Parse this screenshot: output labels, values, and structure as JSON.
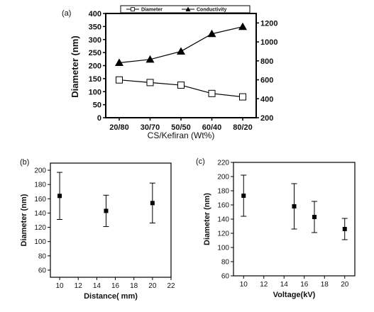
{
  "chart_data": [
    {
      "panel_label": "(a)",
      "type": "line",
      "categories": [
        "20/80",
        "30/70",
        "50/50",
        "60/40",
        "80/20"
      ],
      "xlabel": "CS/Kefiran (Wt%)",
      "ylabel": "Diameter (nm)",
      "ylabel_right": "",
      "ylim": [
        0,
        400
      ],
      "yticks": [
        "0",
        "50",
        "100",
        "150",
        "200",
        "250",
        "300",
        "350",
        "400"
      ],
      "ylim_right": [
        200,
        1300
      ],
      "yticks_right": [
        "200",
        "400",
        "600",
        "800",
        "1000",
        "1200"
      ],
      "legend_position": "top",
      "series": [
        {
          "name": "Diameter",
          "axis": "left",
          "marker": "open-square",
          "values": [
            145,
            135,
            125,
            93,
            80
          ]
        },
        {
          "name": "Conductivity",
          "axis": "right",
          "marker": "filled-triangle",
          "values": [
            780,
            815,
            900,
            1085,
            1160
          ]
        }
      ]
    },
    {
      "panel_label": "(b)",
      "type": "scatter",
      "xlabel": "Distance( mm)",
      "ylabel": "Diameter (nm)",
      "xlim": [
        9,
        22
      ],
      "xticks": [
        "10",
        "12",
        "14",
        "16",
        "18",
        "20",
        "22"
      ],
      "ylim": [
        50,
        210
      ],
      "yticks": [
        "60",
        "80",
        "100",
        "120",
        "140",
        "160",
        "180",
        "200"
      ],
      "points": [
        {
          "x": 10,
          "y": 164,
          "err_low": 131,
          "err_high": 197
        },
        {
          "x": 15,
          "y": 143,
          "err_low": 121,
          "err_high": 165
        },
        {
          "x": 20,
          "y": 154,
          "err_low": 126,
          "err_high": 182
        }
      ]
    },
    {
      "panel_label": "(c)",
      "type": "scatter",
      "xlabel": "Voltage(kV)",
      "ylabel": "Diameter (nm)",
      "xlim": [
        9,
        21
      ],
      "xticks": [
        "10",
        "12",
        "14",
        "16",
        "18",
        "20"
      ],
      "ylim": [
        60,
        220
      ],
      "yticks": [
        "60",
        "80",
        "100",
        "120",
        "140",
        "160",
        "180",
        "200",
        "220"
      ],
      "points": [
        {
          "x": 10,
          "y": 173,
          "err_low": 144,
          "err_high": 202
        },
        {
          "x": 15,
          "y": 158,
          "err_low": 126,
          "err_high": 190
        },
        {
          "x": 17,
          "y": 143,
          "err_low": 121,
          "err_high": 165
        },
        {
          "x": 20,
          "y": 126,
          "err_low": 111,
          "err_high": 141
        }
      ]
    }
  ]
}
